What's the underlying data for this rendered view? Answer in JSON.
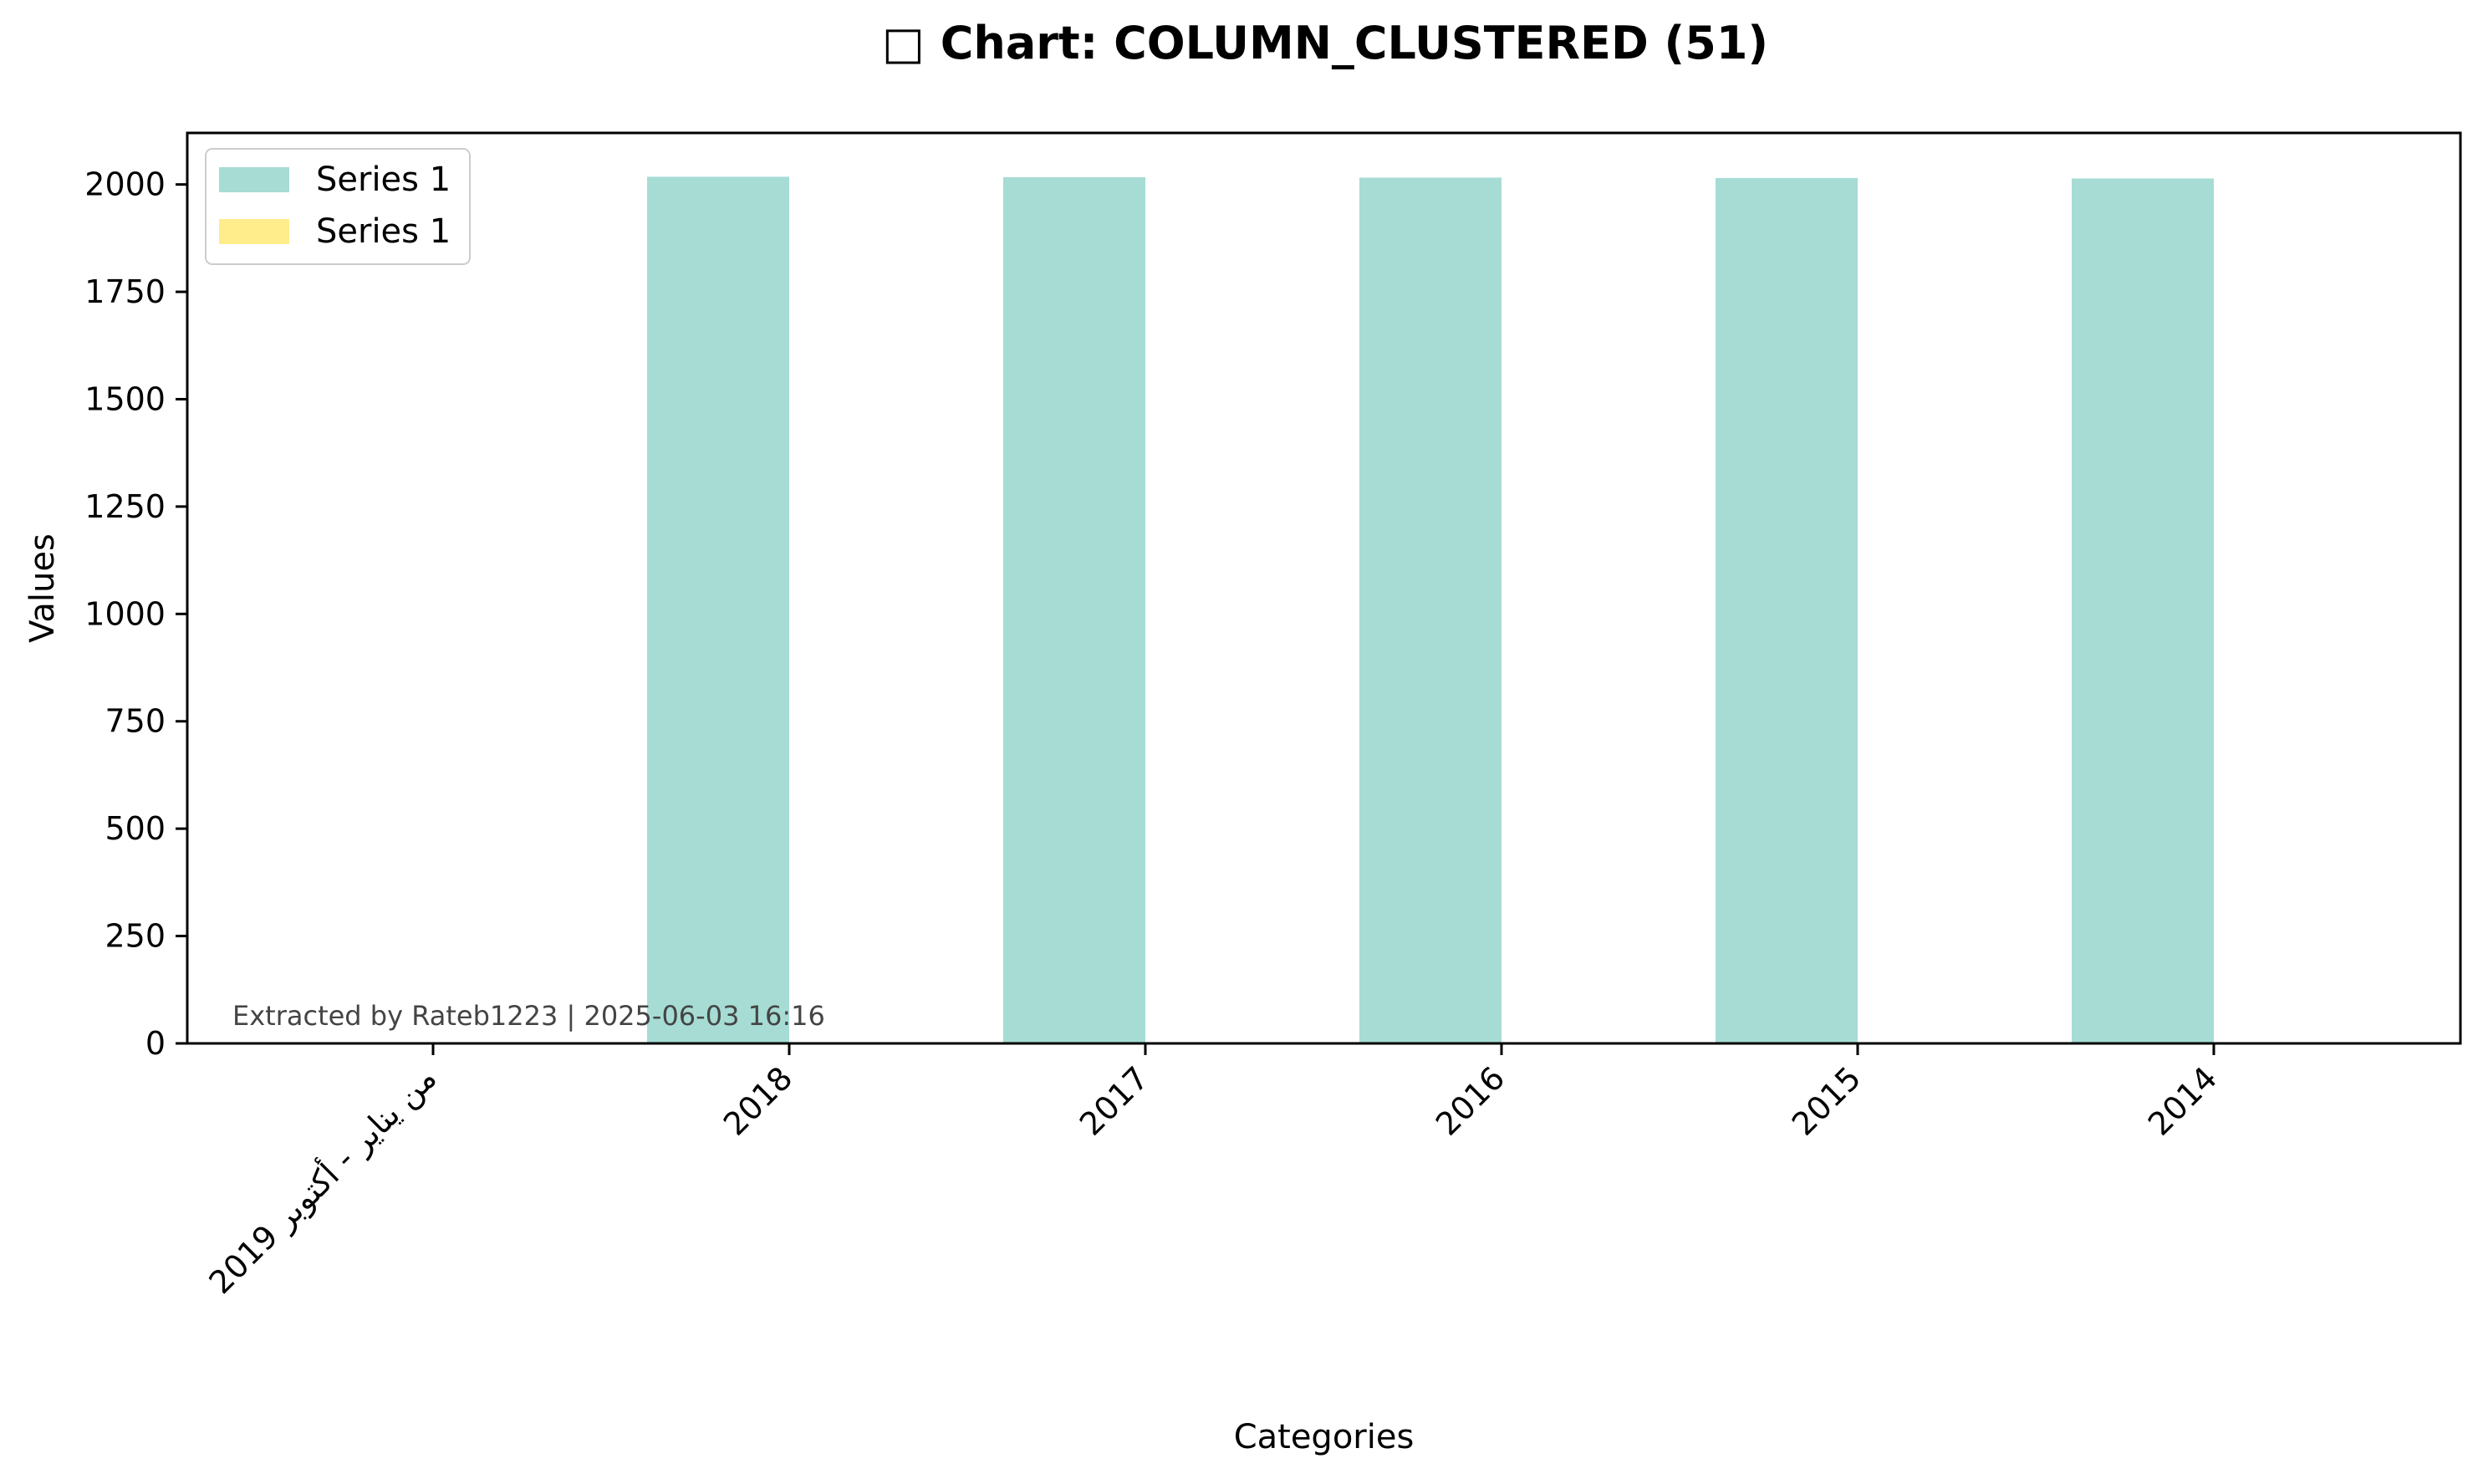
{
  "chart_data": {
    "type": "bar",
    "title": "□ Chart: COLUMN_CLUSTERED (51)",
    "xlabel": "Categories",
    "ylabel": "Values",
    "categories": [
      "من يناير - أكتوبر 2019",
      "2018",
      "2017",
      "2016",
      "2015",
      "2014"
    ],
    "series": [
      {
        "name": "Series 1",
        "color": "#a6dcd4",
        "values": [
          0,
          2018,
          2017,
          2016,
          2015,
          2014
        ]
      },
      {
        "name": "Series 1",
        "color": "#ffec8b",
        "values": [
          0,
          0,
          0,
          0,
          0,
          0
        ]
      }
    ],
    "ylim": [
      0,
      2120
    ],
    "yticks": [
      0,
      250,
      500,
      750,
      1000,
      1250,
      1500,
      1750,
      2000
    ],
    "legend_position": "top-left",
    "grid": false,
    "annotation": "Extracted by Rateb1223 | 2025-06-03 16:16"
  }
}
